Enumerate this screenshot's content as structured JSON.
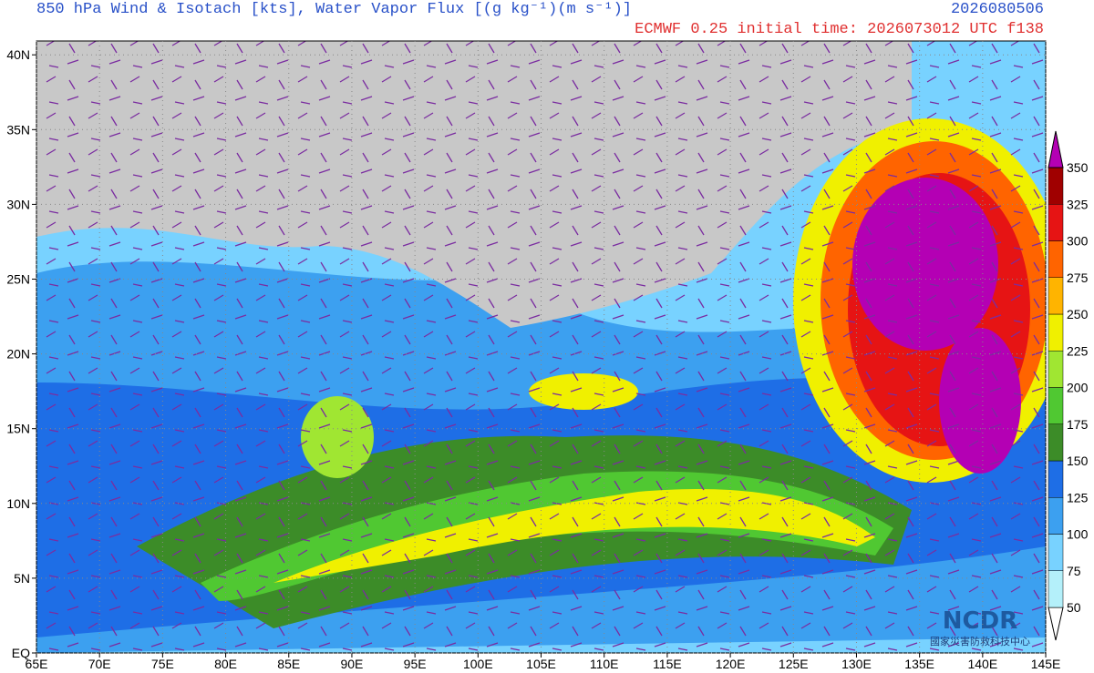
{
  "header": {
    "title": "850 hPa  Wind & Isotach [kts], Water Vapor Flux [(g kg⁻¹)(m s⁻¹)]",
    "valid_time": "2026080506",
    "subtitle": "ECMWF  0.25 initial time: 2026073012 UTC f138"
  },
  "map": {
    "lat_labels": [
      "EQ",
      "5N",
      "10N",
      "15N",
      "20N",
      "25N",
      "30N",
      "35N",
      "40N"
    ],
    "lon_labels": [
      "65E",
      "70E",
      "75E",
      "80E",
      "85E",
      "90E",
      "95E",
      "100E",
      "105E",
      "110E",
      "115E",
      "120E",
      "125E",
      "130E",
      "135E",
      "140E",
      "145E"
    ]
  },
  "colorbar": {
    "levels": [
      50,
      75,
      100,
      125,
      150,
      175,
      200,
      225,
      250,
      275,
      300,
      325,
      350
    ],
    "colors": [
      "#ffffff",
      "#b4f0fa",
      "#78d2ff",
      "#3ca0f0",
      "#1e6ee6",
      "#3c8c28",
      "#50c832",
      "#a0e632",
      "#f0f000",
      "#ffb400",
      "#ff6400",
      "#e61414",
      "#a00000",
      "#b400b4"
    ]
  },
  "logo": {
    "name": "NCDR",
    "org": "國家災害防救科技中心"
  }
}
